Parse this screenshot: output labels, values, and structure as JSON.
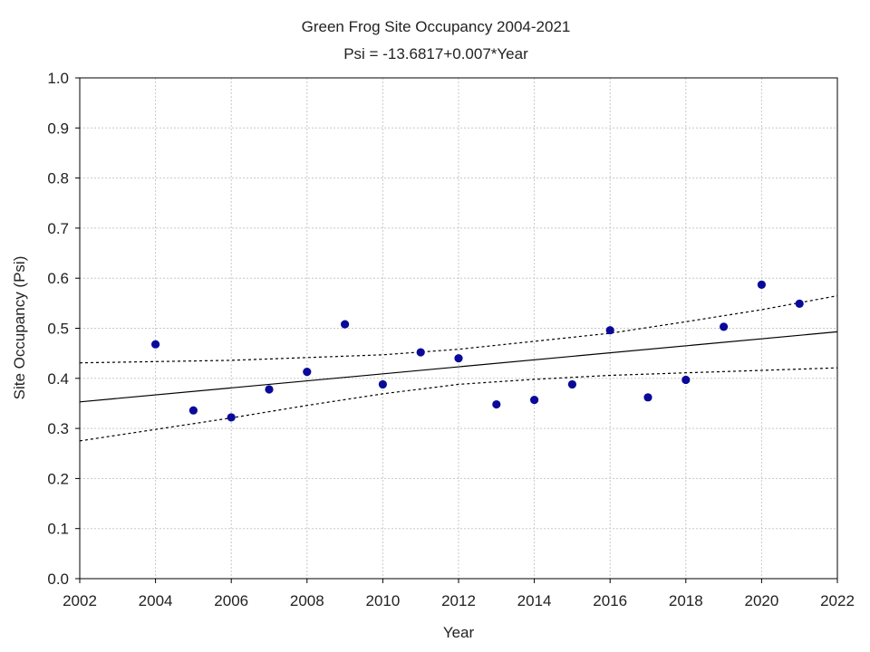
{
  "chart_data": {
    "type": "scatter",
    "title": "Green Frog Site Occupancy 2004-2021",
    "subtitle": "Psi = -13.6817+0.007*Year",
    "xlabel": "Year",
    "ylabel": "Site Occupancy (Psi)",
    "xlim": [
      2002,
      2022
    ],
    "ylim": [
      0.0,
      1.0
    ],
    "xticks": [
      "2002",
      "2004",
      "2006",
      "2008",
      "2010",
      "2012",
      "2014",
      "2016",
      "2018",
      "2020",
      "2022"
    ],
    "yticks": [
      "0.0",
      "0.1",
      "0.2",
      "0.3",
      "0.4",
      "0.5",
      "0.6",
      "0.7",
      "0.8",
      "0.9",
      "1.0"
    ],
    "grid": true,
    "point_color": "#0a0a9a",
    "points": [
      {
        "x": 2004,
        "y": 0.468
      },
      {
        "x": 2005,
        "y": 0.336
      },
      {
        "x": 2006,
        "y": 0.322
      },
      {
        "x": 2007,
        "y": 0.378
      },
      {
        "x": 2008,
        "y": 0.413
      },
      {
        "x": 2009,
        "y": 0.508
      },
      {
        "x": 2010,
        "y": 0.388
      },
      {
        "x": 2011,
        "y": 0.452
      },
      {
        "x": 2012,
        "y": 0.44
      },
      {
        "x": 2013,
        "y": 0.348
      },
      {
        "x": 2014,
        "y": 0.357
      },
      {
        "x": 2015,
        "y": 0.388
      },
      {
        "x": 2016,
        "y": 0.496
      },
      {
        "x": 2017,
        "y": 0.362
      },
      {
        "x": 2018,
        "y": 0.397
      },
      {
        "x": 2019,
        "y": 0.503
      },
      {
        "x": 2020,
        "y": 0.587
      },
      {
        "x": 2021,
        "y": 0.549
      }
    ],
    "fit_line": [
      {
        "x": 2002,
        "y": 0.353
      },
      {
        "x": 2022,
        "y": 0.493
      }
    ],
    "confidence_upper": [
      {
        "x": 2002,
        "y": 0.431
      },
      {
        "x": 2006,
        "y": 0.436
      },
      {
        "x": 2010,
        "y": 0.447
      },
      {
        "x": 2012,
        "y": 0.458
      },
      {
        "x": 2014,
        "y": 0.474
      },
      {
        "x": 2016,
        "y": 0.49
      },
      {
        "x": 2018,
        "y": 0.513
      },
      {
        "x": 2020,
        "y": 0.537
      },
      {
        "x": 2022,
        "y": 0.565
      }
    ],
    "confidence_lower": [
      {
        "x": 2002,
        "y": 0.275
      },
      {
        "x": 2004,
        "y": 0.298
      },
      {
        "x": 2006,
        "y": 0.321
      },
      {
        "x": 2008,
        "y": 0.346
      },
      {
        "x": 2010,
        "y": 0.369
      },
      {
        "x": 2012,
        "y": 0.388
      },
      {
        "x": 2014,
        "y": 0.398
      },
      {
        "x": 2016,
        "y": 0.406
      },
      {
        "x": 2018,
        "y": 0.411
      },
      {
        "x": 2020,
        "y": 0.416
      },
      {
        "x": 2022,
        "y": 0.421
      }
    ]
  }
}
